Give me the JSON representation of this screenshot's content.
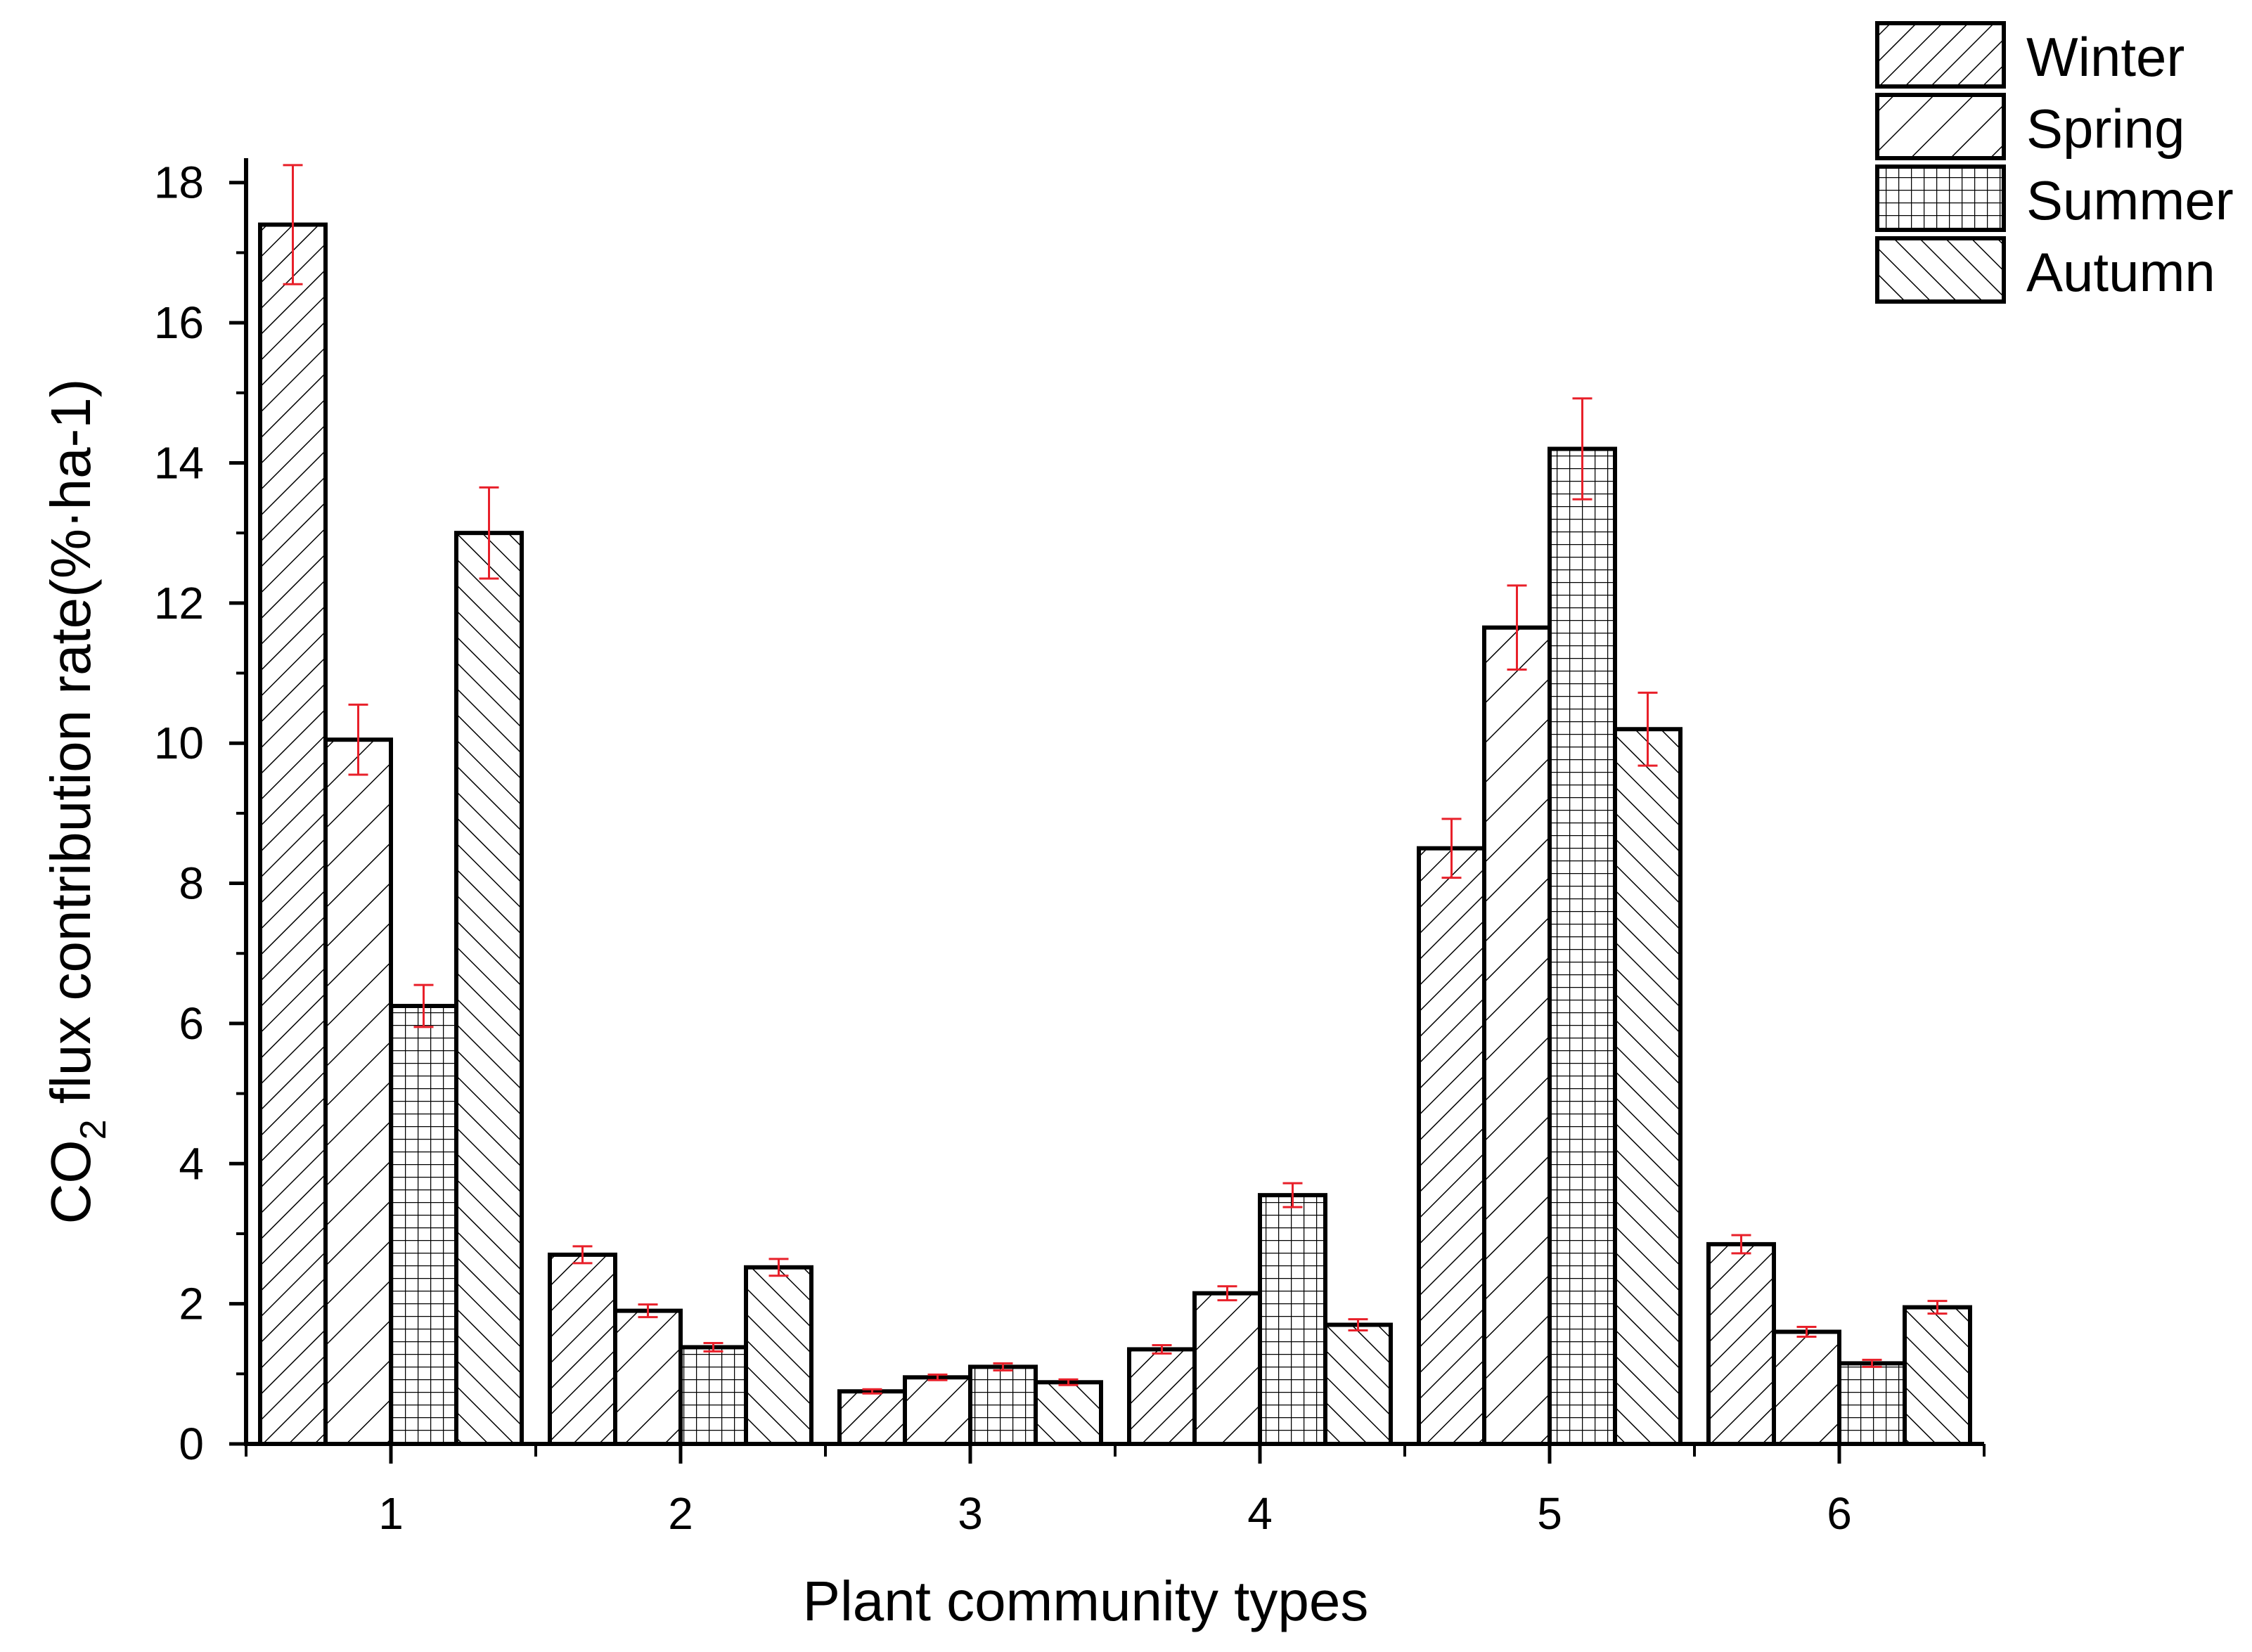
{
  "chart_data": {
    "type": "bar",
    "title": "",
    "xlabel": "Plant community types",
    "ylabel": {
      "prefix": "CO",
      "subscript": "2",
      "suffix": " flux contribution rate(%·ha-1)"
    },
    "categories": [
      "1",
      "2",
      "3",
      "4",
      "5",
      "6"
    ],
    "ylim": [
      0,
      18.8
    ],
    "yticks": [
      "0",
      "2",
      "4",
      "6",
      "8",
      "10",
      "12",
      "14",
      "16",
      "18"
    ],
    "grid": false,
    "legend_position": "top-right",
    "series": [
      {
        "name": "Winter",
        "pattern": "diag-fine",
        "values": [
          17.4,
          2.7,
          0.75,
          1.35,
          8.5,
          2.85
        ],
        "errors": [
          0.85,
          0.12,
          0.03,
          0.06,
          0.42,
          0.13
        ]
      },
      {
        "name": "Spring",
        "pattern": "diag-wide",
        "values": [
          10.05,
          1.9,
          0.95,
          2.15,
          11.65,
          1.6
        ],
        "errors": [
          0.5,
          0.09,
          0.04,
          0.1,
          0.6,
          0.07
        ]
      },
      {
        "name": "Summer",
        "pattern": "grid",
        "values": [
          6.25,
          1.38,
          1.1,
          3.55,
          14.2,
          1.15
        ],
        "errors": [
          0.3,
          0.06,
          0.05,
          0.17,
          0.72,
          0.05
        ]
      },
      {
        "name": "Autumn",
        "pattern": "back-diag",
        "values": [
          13.0,
          2.52,
          0.88,
          1.7,
          10.2,
          1.95
        ],
        "errors": [
          0.65,
          0.12,
          0.04,
          0.08,
          0.52,
          0.09
        ]
      }
    ],
    "colors": {
      "bar_stroke": "#000000",
      "error_bar": "#e8202a",
      "background": "#ffffff"
    }
  }
}
